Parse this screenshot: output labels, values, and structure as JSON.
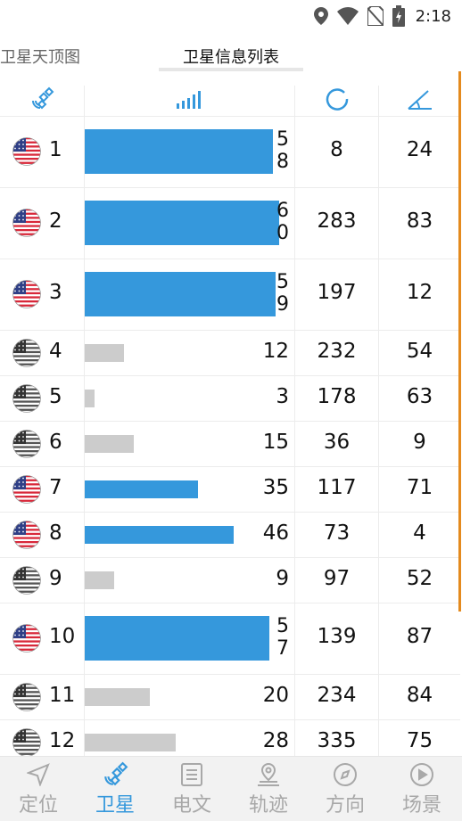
{
  "status_bar": {
    "time": "2:18"
  },
  "tabs": [
    {
      "label": "卫星天顶图",
      "active": false
    },
    {
      "label": "卫星信息列表",
      "active": true
    }
  ],
  "columns": [
    {
      "icon": "satellite-icon"
    },
    {
      "icon": "signal-strength-icon"
    },
    {
      "icon": "azimuth-icon"
    },
    {
      "icon": "elevation-angle-icon"
    }
  ],
  "accent_color": "#3598dc",
  "satellites": [
    {
      "prn": "1",
      "snr": "58",
      "azimuth": "8",
      "elevation": "24",
      "used": true
    },
    {
      "prn": "2",
      "snr": "60",
      "azimuth": "283",
      "elevation": "83",
      "used": true
    },
    {
      "prn": "3",
      "snr": "59",
      "azimuth": "197",
      "elevation": "12",
      "used": true
    },
    {
      "prn": "4",
      "snr": "12",
      "azimuth": "232",
      "elevation": "54",
      "used": false
    },
    {
      "prn": "5",
      "snr": "3",
      "azimuth": "178",
      "elevation": "63",
      "used": false
    },
    {
      "prn": "6",
      "snr": "15",
      "azimuth": "36",
      "elevation": "9",
      "used": false
    },
    {
      "prn": "7",
      "snr": "35",
      "azimuth": "117",
      "elevation": "71",
      "used": true
    },
    {
      "prn": "8",
      "snr": "46",
      "azimuth": "73",
      "elevation": "4",
      "used": true
    },
    {
      "prn": "9",
      "snr": "9",
      "azimuth": "97",
      "elevation": "52",
      "used": false
    },
    {
      "prn": "10",
      "snr": "57",
      "azimuth": "139",
      "elevation": "87",
      "used": true
    },
    {
      "prn": "11",
      "snr": "20",
      "azimuth": "234",
      "elevation": "84",
      "used": false
    },
    {
      "prn": "12",
      "snr": "28",
      "azimuth": "335",
      "elevation": "75",
      "used": false
    }
  ],
  "bottom_nav": [
    {
      "label": "定位",
      "icon": "location-arrow-icon",
      "active": false
    },
    {
      "label": "卫星",
      "icon": "satellite-icon",
      "active": true
    },
    {
      "label": "电文",
      "icon": "message-icon",
      "active": false
    },
    {
      "label": "轨迹",
      "icon": "track-pin-icon",
      "active": false
    },
    {
      "label": "方向",
      "icon": "compass-icon",
      "active": false
    },
    {
      "label": "场景",
      "icon": "play-icon",
      "active": false
    }
  ]
}
